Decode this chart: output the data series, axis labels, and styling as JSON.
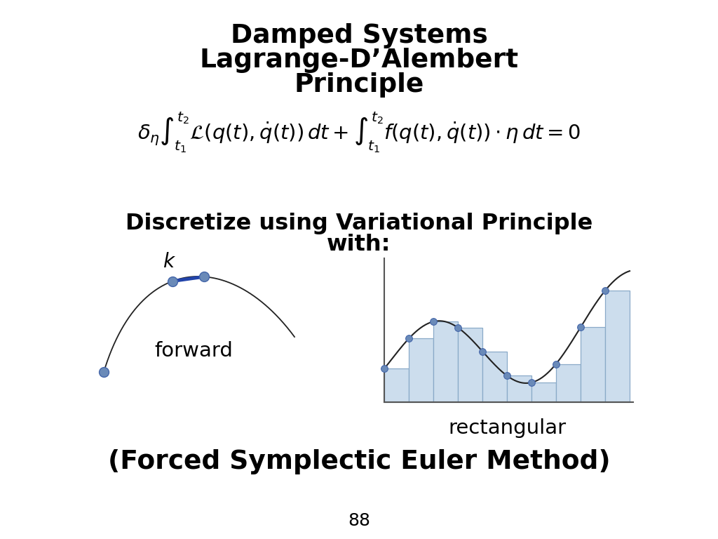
{
  "title_line1": "Damped Systems",
  "title_line2": "Lagrange-D’Alembert",
  "title_line3": "Principle",
  "formula": "\\delta_\\eta \\int_{t_1}^{t_2} \\mathcal{L}(q(t), \\dot{q}(t))\\, dt + \\int_{t_1}^{t_2} f(q(t), \\dot{q}(t)) \\cdot \\eta\\, dt = 0",
  "subtitle_line1": "Discretize using Variational Principle",
  "subtitle_line2": "with:",
  "label_forward": "forward",
  "label_rectangular": "rectangular",
  "label_bottom": "(Forced Symplectic Euler Method)",
  "page_number": "88",
  "bg_color": "#ffffff",
  "title_color": "#000000",
  "text_color": "#000000",
  "bar_color": "#ccdded",
  "bar_edge_color": "#8aaac8",
  "dot_color": "#6a8ab8",
  "curve_color": "#222222",
  "line_color": "#222222",
  "blue_bar_color": "#2244aa"
}
